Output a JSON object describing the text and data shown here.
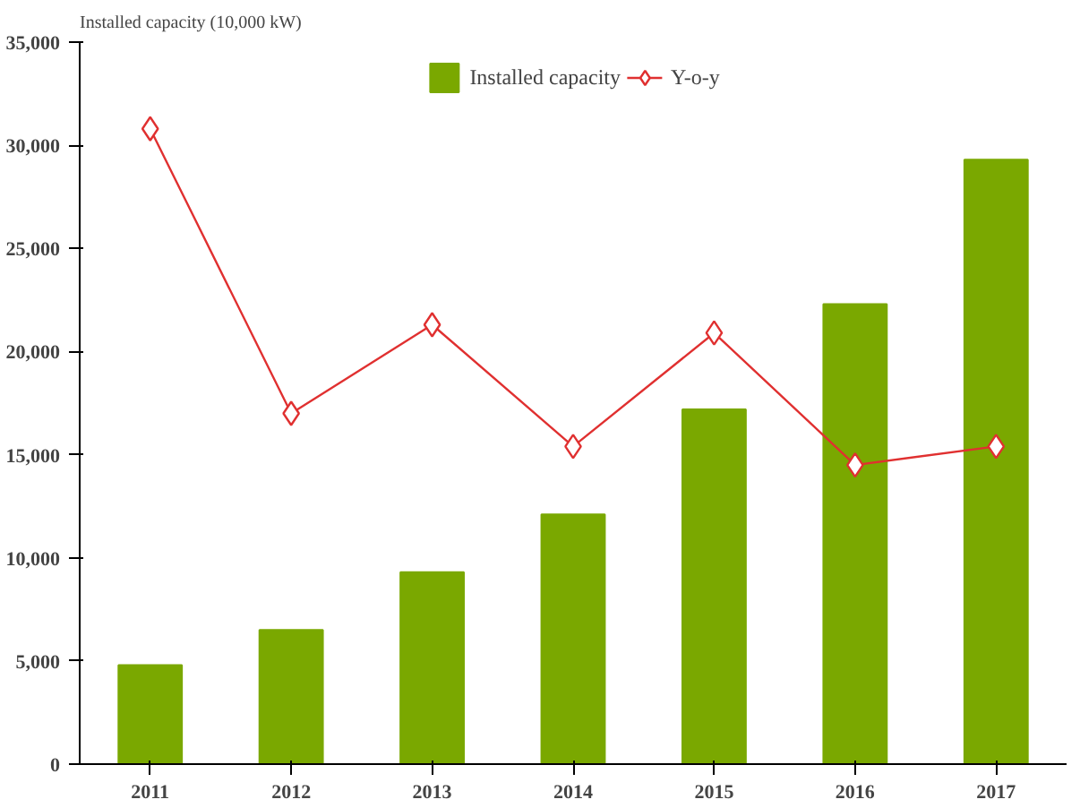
{
  "chart_data": {
    "type": "bar",
    "ylabel": "Installed capacity (10,000 kW)",
    "categories": [
      "2011",
      "2012",
      "2013",
      "2014",
      "2015",
      "2016",
      "2017"
    ],
    "series": [
      {
        "name": "Installed capacity",
        "color": "#7aa800",
        "values": [
          4800,
          6500,
          9300,
          12100,
          17200,
          22300,
          29300
        ]
      },
      {
        "name": "Y-o-y",
        "type": "line",
        "color": "#e03030",
        "marker": "diamond",
        "values": [
          30800,
          17000,
          21300,
          15400,
          20900,
          14500,
          15400
        ]
      }
    ],
    "ylim": [
      0,
      35000
    ],
    "yticks": [
      {
        "value": 0,
        "label": "0"
      },
      {
        "value": 5000,
        "label": "5,000"
      },
      {
        "value": 10000,
        "label": "10,000"
      },
      {
        "value": 15000,
        "label": "15,000"
      },
      {
        "value": 20000,
        "label": "20,000"
      },
      {
        "value": 25000,
        "label": "25,000"
      },
      {
        "value": 30000,
        "label": "30,000"
      },
      {
        "value": 35000,
        "label": "35,000"
      }
    ],
    "grid": false,
    "legend": "top"
  }
}
